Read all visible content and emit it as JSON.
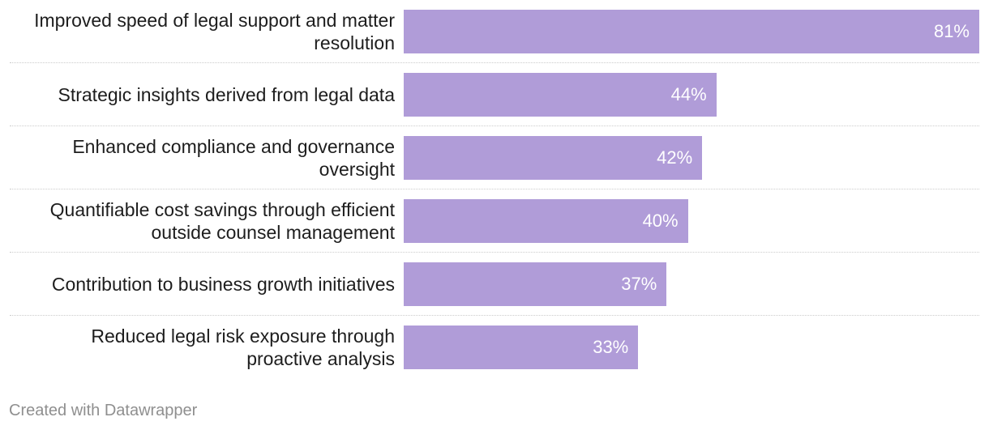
{
  "chart_data": {
    "type": "bar",
    "orientation": "horizontal",
    "categories": [
      "Improved speed of legal support and matter resolution",
      "Strategic insights derived from legal data",
      "Enhanced compliance and governance oversight",
      "Quantifiable cost savings through efficient outside counsel management",
      "Contribution to business growth initiatives",
      "Reduced legal risk exposure through proactive analysis"
    ],
    "label_lines": [
      [
        "Improved speed of legal support and matter",
        "resolution"
      ],
      [
        "Strategic insights derived from legal data"
      ],
      [
        "Enhanced compliance and governance",
        "oversight"
      ],
      [
        "Quantifiable cost savings through efficient",
        "outside counsel management"
      ],
      [
        "Contribution to business growth initiatives"
      ],
      [
        "Reduced legal risk exposure through",
        "proactive analysis"
      ]
    ],
    "values": [
      81,
      44,
      42,
      40,
      37,
      33
    ],
    "value_labels": [
      "81%",
      "44%",
      "42%",
      "40%",
      "37%",
      "33%"
    ],
    "unit": "%",
    "xlim": [
      0,
      81
    ],
    "bar_color": "#b09cd8",
    "value_label_color": "#ffffff",
    "grid": false
  },
  "footer": {
    "credit": "Created with Datawrapper"
  }
}
